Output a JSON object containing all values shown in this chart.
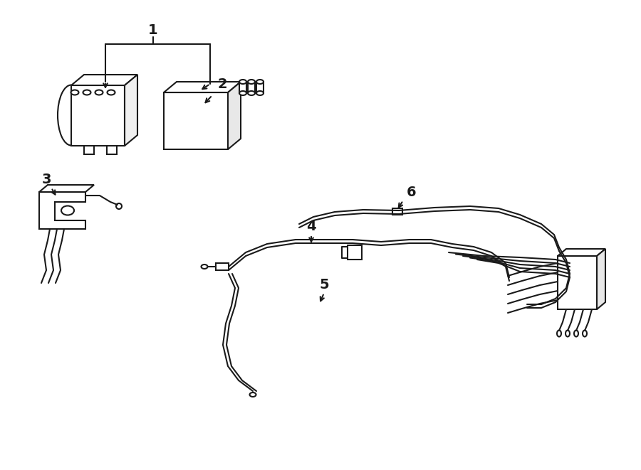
{
  "bg_color": "#ffffff",
  "line_color": "#1a1a1a",
  "text_color": "#1a1a1a",
  "lw": 1.5,
  "fig_width": 9.0,
  "fig_height": 6.61,
  "dpi": 100,
  "label_fontsize": 14
}
